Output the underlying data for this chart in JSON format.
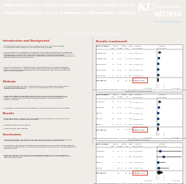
{
  "title_line1": "Meta-analysis of Safety of Granulocyte-Macrophage Colony-",
  "title_line2": "Stimulating Factor in the Treatment of Rheumatoid Arthritis",
  "authors": "Rami Diab MD, Mohinder Vindhyal MD",
  "header_bg": "#2c5f8a",
  "header_text_color": "#ffffff",
  "authors_bg": "#3a6f9a",
  "red_bar_color": "#c0392b",
  "body_bg": "#f0ede8",
  "panel_bg": "#ffffff",
  "section_title_color": "#c0392b",
  "body_text_color": "#111111",
  "ku_logo_bg": "#003087",
  "intro_title": "Introduction and Background",
  "methods_title": "Methods",
  "results_title": "Results",
  "conclusions_title": "Conclusions",
  "results_cont_title": "Results (continued)",
  "highlight_box_color": "#e74c3c",
  "forest_line_color": "#333333",
  "marker_color": "#1a3a6b",
  "diamond_color": "#000000",
  "panel1_rows": [
    {
      "name": "Burmester 2011",
      "events_t": 148,
      "total_t": 231,
      "events_p": 22,
      "total_p": 74,
      "weight": "19.4%",
      "rr": "2.16",
      "ci": "1.47, 3.17",
      "rr_num": 2.16,
      "low": 1.47,
      "high": 3.17
    },
    {
      "name": "Burmester 2013",
      "events_t": 131,
      "total_t": 233,
      "events_p": 44,
      "total_p": 119,
      "weight": "30.5%",
      "rr": "1.52",
      "ci": "1.15, 2.02",
      "rr_num": 1.52,
      "low": 1.15,
      "high": 2.02
    },
    {
      "name": "Takeuchi 2013",
      "events_t": 62,
      "total_t": 119,
      "events_p": 18,
      "total_p": 40,
      "weight": "15.2%",
      "rr": "1.16",
      "ci": "0.76, 1.76",
      "rr_num": 1.16,
      "low": 0.76,
      "high": 1.76
    },
    {
      "name": "Weinblatt 2018",
      "events_t": 155,
      "total_t": 199,
      "events_p": 48,
      "total_p": 64,
      "weight": "25.8%",
      "rr": "1.04",
      "ci": "0.87, 1.25",
      "rr_num": 1.04,
      "low": 0.87,
      "high": 1.25
    },
    {
      "name": "Behrens 2015",
      "events_t": 43,
      "total_t": 99,
      "events_p": 12,
      "total_p": 33,
      "weight": "9.1%",
      "rr": "1.19",
      "ci": "0.70, 2.04",
      "rr_num": 1.19,
      "low": 0.7,
      "high": 2.04
    }
  ],
  "panel1_total": {
    "weight": "100%",
    "rr": "1.39",
    "ci": "1.17, 1.65",
    "rr_num": 1.39,
    "low": 1.17,
    "high": 1.65
  },
  "panel1_fig": "Fig 1: Forest plot demonstrating statistically significant overall greater likelihood of Skin Infection Event (SAE) in Mavrilimumab (Mav) and Lamilumab (Iam) treated patients confirmed vs. placebo.",
  "panel2_rows": [
    {
      "name": "A. Burmester",
      "events_t": 148,
      "total_t": 231,
      "events_p": 22,
      "total_p": 74,
      "weight": "19.4%",
      "rr": "2.16",
      "ci": "1.47, 3.17",
      "rr_num": 2.16,
      "low": 1.47,
      "high": 3.17
    },
    {
      "name": "B. Burmester",
      "events_t": 131,
      "total_t": 233,
      "events_p": 44,
      "total_p": 119,
      "weight": "30.5%",
      "rr": "1.52",
      "ci": "1.15, 2.02",
      "rr_num": 1.52,
      "low": 1.15,
      "high": 2.02
    },
    {
      "name": "Takeuchi",
      "events_t": 62,
      "total_t": 119,
      "events_p": 18,
      "total_p": 40,
      "weight": "15.2%",
      "rr": "1.16",
      "ci": "0.76, 1.76",
      "rr_num": 1.16,
      "low": 0.76,
      "high": 1.76
    },
    {
      "name": "Weinblatt",
      "events_t": 155,
      "total_t": 199,
      "events_p": 48,
      "total_p": 64,
      "weight": "25.8%",
      "rr": "1.04",
      "ci": "0.87, 1.25",
      "rr_num": 1.04,
      "low": 0.87,
      "high": 1.25
    },
    {
      "name": "Behrens",
      "events_t": 43,
      "total_t": 99,
      "events_p": 12,
      "total_p": 33,
      "weight": "9.1%",
      "rr": "1.19",
      "ci": "0.70, 2.04",
      "rr_num": 1.19,
      "low": 0.7,
      "high": 2.04
    }
  ],
  "panel2_total": {
    "weight": "100%",
    "rr": "1.39",
    "ci": "1.17, 1.65",
    "rr_num": 1.39,
    "low": 1.17,
    "high": 1.65
  },
  "panel2_fig": "Fig 2: Forest plot demonstrating statistically significant overall greater likelihood of Skin Infection Event (SAE) in Mavrilimumab (Mav) and Lamilumab (Iam) treated patients vs. placebo.",
  "panel3_rows": [
    {
      "name": "A. Burmester",
      "events_t": 8,
      "total_t": 231,
      "events_p": 1,
      "total_p": 74,
      "weight": "22.1%",
      "rr": "2.56",
      "ci": "0.33, 20.0",
      "rr_num": 2.56,
      "low": 0.33,
      "high": 20.0
    },
    {
      "name": "B. Burmester",
      "events_t": 4,
      "total_t": 233,
      "events_p": 0,
      "total_p": 119,
      "weight": "8.3%",
      "rr": "4.60",
      "ci": "0.25, 85.5",
      "rr_num": 4.6,
      "low": 0.25,
      "high": 85.5
    },
    {
      "name": "Takeuchi",
      "events_t": 7,
      "total_t": 119,
      "events_p": 2,
      "total_p": 40,
      "weight": "30.2%",
      "rr": "1.17",
      "ci": "0.25, 5.55",
      "rr_num": 1.17,
      "low": 0.25,
      "high": 5.55
    },
    {
      "name": "Weinblatt",
      "events_t": 11,
      "total_t": 199,
      "events_p": 2,
      "total_p": 64,
      "weight": "39.4%",
      "rr": "1.77",
      "ci": "0.40, 7.79",
      "rr_num": 1.77,
      "low": 0.4,
      "high": 7.79
    }
  ],
  "panel3_total": {
    "weight": "100%",
    "rr": "1.88",
    "ci": "0.85, 4.17",
    "rr_num": 1.88,
    "low": 0.85,
    "high": 4.17
  },
  "panel3_fig": "Fig 3: Forest plot demonstrating statistically significant greater association with hypertension or Mavrilimumab (Mav) treated patients vs placebo."
}
